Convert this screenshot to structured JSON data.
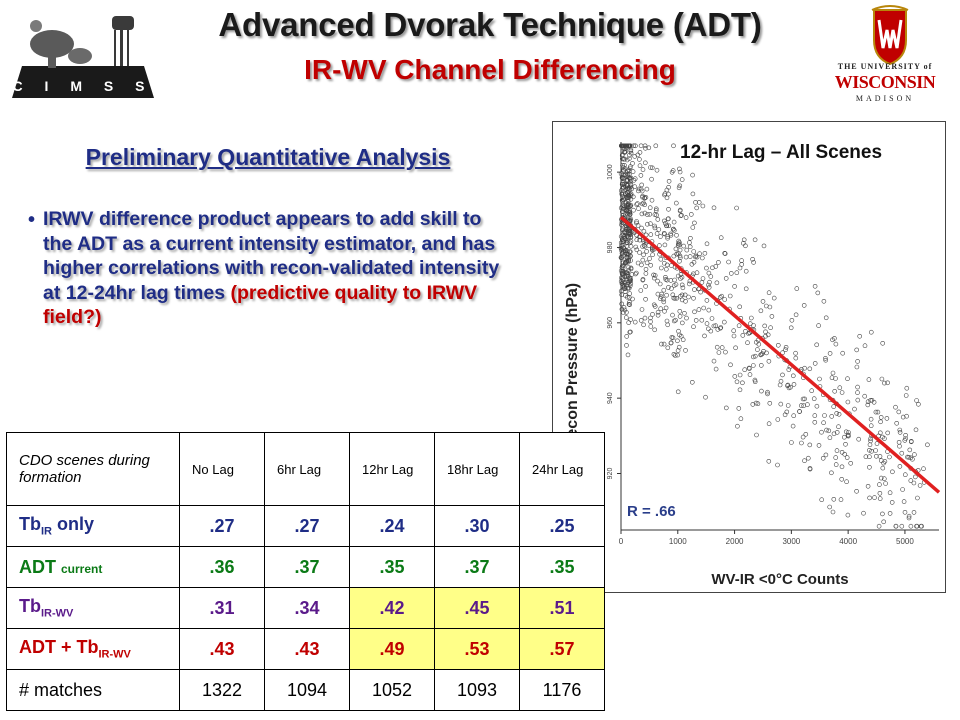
{
  "header": {
    "title": "Advanced Dvorak Technique (ADT)",
    "subtitle": "IR-WV Channel Differencing",
    "left_logo_text": "C I M S S",
    "right_logo": {
      "line1": "THE UNIVERSITY of",
      "line2": "WISCONSIN",
      "line3": "MADISON"
    }
  },
  "section": {
    "heading": "Preliminary Quantitative Analysis",
    "bullet_main": "IRWV difference product appears to add skill to the ADT as a current intensity estimator, and has higher correlations with recon-validated intensity at 12-24hr lag times ",
    "bullet_red": "(predictive quality to IRWV field?)"
  },
  "table": {
    "corner": "CDO scenes during formation",
    "headers": [
      "No Lag",
      "6hr Lag",
      "12hr Lag",
      "18hr Lag",
      "24hr Lag"
    ],
    "rows": [
      {
        "label": "Tb",
        "sub": "IR",
        "suffix": " only",
        "values": [
          ".27",
          ".27",
          ".24",
          ".30",
          ".25"
        ],
        "highlight": [
          false,
          false,
          false,
          false,
          false
        ]
      },
      {
        "label": "ADT ",
        "sub": "current",
        "suffix": "",
        "values": [
          ".36",
          ".37",
          ".35",
          ".37",
          ".35"
        ],
        "highlight": [
          false,
          false,
          false,
          false,
          false
        ]
      },
      {
        "label": "Tb",
        "sub": "IR-WV",
        "suffix": "",
        "values": [
          ".31",
          ".34",
          ".42",
          ".45",
          ".51"
        ],
        "highlight": [
          false,
          false,
          true,
          true,
          true
        ]
      },
      {
        "label": "ADT + Tb",
        "sub": "IR-WV",
        "suffix": "",
        "values": [
          ".43",
          ".43",
          ".49",
          ".53",
          ".57"
        ],
        "highlight": [
          false,
          false,
          true,
          true,
          true
        ]
      },
      {
        "label": "# matches",
        "sub": "",
        "suffix": "",
        "values": [
          "1322",
          "1094",
          "1052",
          "1093",
          "1176"
        ],
        "highlight": [
          false,
          false,
          false,
          false,
          false
        ]
      }
    ]
  },
  "chart_data": {
    "type": "scatter",
    "title": "12-hr Lag – All Scenes",
    "xlabel": "WV-IR <0°C Counts",
    "ylabel": "Recon Pressure (hPa)",
    "xlim": [
      0,
      5600
    ],
    "ylim": [
      905,
      1008
    ],
    "xticks": [
      0,
      1000,
      2000,
      3000,
      4000,
      5000
    ],
    "yticks": [
      920,
      940,
      960,
      980,
      1000
    ],
    "annotation": "R = .66",
    "fit_line": {
      "x": [
        0,
        5600
      ],
      "y": [
        988,
        915
      ],
      "color": "#e02020"
    },
    "point_color": "#444444",
    "n_points": 1052
  }
}
